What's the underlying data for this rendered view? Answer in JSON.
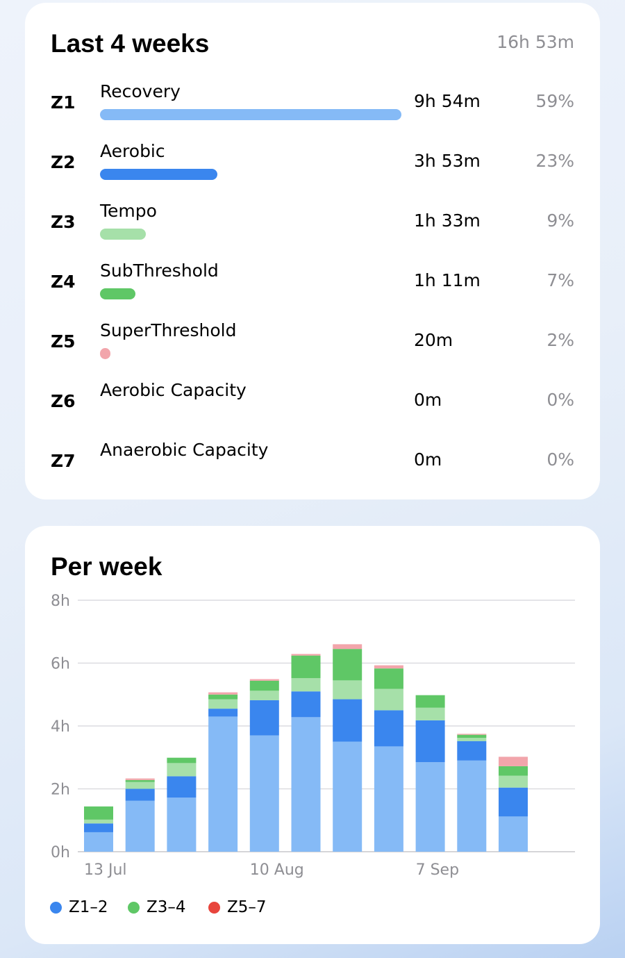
{
  "zones_card": {
    "title": "Last 4 weeks",
    "total": "16h 53m",
    "zones": [
      {
        "code": "Z1",
        "name": "Recovery",
        "time": "9h 54m",
        "percent": "59%",
        "share": 0.59,
        "color": "#85baf6"
      },
      {
        "code": "Z2",
        "name": "Aerobic",
        "time": "3h 53m",
        "percent": "23%",
        "share": 0.23,
        "color": "#3a86ee"
      },
      {
        "code": "Z3",
        "name": "Tempo",
        "time": "1h 33m",
        "percent": "9%",
        "share": 0.09,
        "color": "#a6e0a9"
      },
      {
        "code": "Z4",
        "name": "SubThreshold",
        "time": "1h 11m",
        "percent": "7%",
        "share": 0.07,
        "color": "#5fc766"
      },
      {
        "code": "Z5",
        "name": "SuperThreshold",
        "time": "20m",
        "percent": "2%",
        "share": 0.02,
        "color": "#f2a5ab"
      },
      {
        "code": "Z6",
        "name": "Aerobic Capacity",
        "time": "0m",
        "percent": "0%",
        "share": 0,
        "color": "#f2a5ab"
      },
      {
        "code": "Z7",
        "name": "Anaerobic Capacity",
        "time": "0m",
        "percent": "0%",
        "share": 0,
        "color": "#f2a5ab"
      }
    ]
  },
  "week_card": {
    "title": "Per week",
    "legend": [
      {
        "label": "Z1–2",
        "color": "#3a86ee"
      },
      {
        "label": "Z3–4",
        "color": "#5fc766"
      },
      {
        "label": "Z5–7",
        "color": "#e8453c"
      }
    ]
  },
  "chart_data": {
    "type": "bar",
    "stacked": true,
    "y_tick_labels": [
      "0h",
      "2h",
      "4h",
      "6h",
      "8h"
    ],
    "ylim": [
      0,
      8
    ],
    "x_tick_labels": [
      {
        "label": "13 Jul",
        "index": 0
      },
      {
        "label": "10 Aug",
        "index": 4
      },
      {
        "label": "7 Sep",
        "index": 8
      }
    ],
    "grid": true,
    "bars": [
      [
        0.62,
        0.28,
        0.12,
        0.42,
        0.0
      ],
      [
        1.62,
        0.38,
        0.22,
        0.06,
        0.05
      ],
      [
        1.72,
        0.68,
        0.42,
        0.17,
        0.0
      ],
      [
        4.3,
        0.25,
        0.3,
        0.15,
        0.07
      ],
      [
        3.7,
        1.12,
        0.3,
        0.32,
        0.05
      ],
      [
        4.28,
        0.82,
        0.42,
        0.72,
        0.05
      ],
      [
        3.5,
        1.35,
        0.6,
        1.0,
        0.15
      ],
      [
        3.35,
        1.15,
        0.68,
        0.65,
        0.1
      ],
      [
        2.85,
        1.33,
        0.4,
        0.4,
        0.0
      ],
      [
        2.9,
        0.62,
        0.1,
        0.1,
        0.03
      ],
      [
        1.12,
        0.92,
        0.38,
        0.3,
        0.3
      ]
    ],
    "series": [
      {
        "key": "z1",
        "color": "#85baf6"
      },
      {
        "key": "z2",
        "color": "#3a86ee"
      },
      {
        "key": "z3",
        "color": "#a6e0a9"
      },
      {
        "key": "z4",
        "color": "#5fc766"
      },
      {
        "key": "z5_7",
        "color": "#f2a5ab"
      }
    ]
  }
}
